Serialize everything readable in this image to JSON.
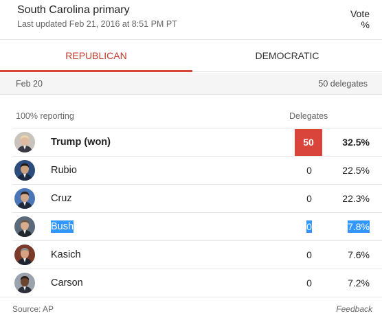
{
  "header": {
    "title": "South Carolina primary",
    "updated": "Last updated Feb 21, 2016 at 8:51 PM PT"
  },
  "tabs": [
    {
      "label": "REPUBLICAN",
      "active": true
    },
    {
      "label": "DEMOCRATIC",
      "active": false
    }
  ],
  "date_band": {
    "date": "Feb 20",
    "delegates_total": "50 delegates"
  },
  "table": {
    "reporting": "100% reporting",
    "col_delegates": "Delegates",
    "col_vote": "Vote %",
    "rows": [
      {
        "name": "Trump (won)",
        "delegates": "50",
        "vote": "32.5%",
        "winner": true,
        "selected": false,
        "avatar": "trump-avatar"
      },
      {
        "name": "Rubio",
        "delegates": "0",
        "vote": "22.5%",
        "winner": false,
        "selected": false,
        "avatar": "rubio-avatar"
      },
      {
        "name": "Cruz",
        "delegates": "0",
        "vote": "22.3%",
        "winner": false,
        "selected": false,
        "avatar": "cruz-avatar"
      },
      {
        "name": "Bush",
        "delegates": "0",
        "vote": "7.8%",
        "winner": false,
        "selected": true,
        "avatar": "bush-avatar"
      },
      {
        "name": "Kasich",
        "delegates": "0",
        "vote": "7.6%",
        "winner": false,
        "selected": false,
        "avatar": "kasich-avatar"
      },
      {
        "name": "Carson",
        "delegates": "0",
        "vote": "7.2%",
        "winner": false,
        "selected": false,
        "avatar": "carson-avatar"
      }
    ]
  },
  "footer": {
    "source": "Source: AP",
    "feedback": "Feedback"
  },
  "colors": {
    "accent": "#d9453b",
    "selection": "#3297fd"
  }
}
